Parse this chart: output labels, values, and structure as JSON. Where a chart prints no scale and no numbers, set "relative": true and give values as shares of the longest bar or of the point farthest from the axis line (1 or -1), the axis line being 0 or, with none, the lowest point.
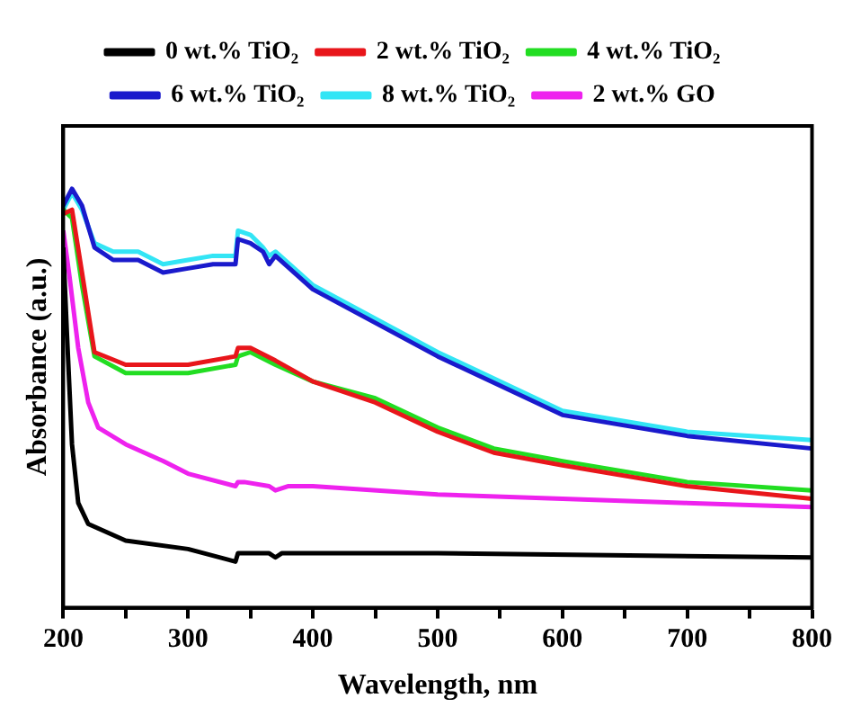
{
  "chart_data": {
    "type": "line",
    "xlabel": "Wavelength, nm",
    "ylabel": "Absorbance (a.u.)",
    "relative": true,
    "xlim": [
      200,
      800
    ],
    "xticks": [
      200,
      {
        "value": 250,
        "label": null
      },
      300,
      {
        "value": 350,
        "label": null
      },
      400,
      {
        "value": 450,
        "label": null
      },
      500,
      {
        "value": 550,
        "label": null
      },
      600,
      {
        "value": 650,
        "label": null
      },
      700,
      {
        "value": 750,
        "label": null
      },
      800
    ],
    "grid": false,
    "legend": "top",
    "marker": "none",
    "line_style": "solid",
    "series": [
      {
        "name": "0 wt.% TiO₂",
        "color": "#000000",
        "x": [
          200,
          203,
          207,
          212,
          220,
          235,
          250,
          300,
          338,
          340,
          365,
          370,
          375,
          400,
          500,
          800
        ],
        "values": [
          0.86,
          0.65,
          0.39,
          0.25,
          0.2,
          0.18,
          0.16,
          0.14,
          0.11,
          0.13,
          0.13,
          0.12,
          0.13,
          0.13,
          0.13,
          0.12
        ]
      },
      {
        "name": "2 wt.% TiO₂",
        "color": "#e8161b",
        "x": [
          200,
          207,
          215,
          225,
          250,
          300,
          338,
          340,
          350,
          370,
          400,
          450,
          500,
          545,
          600,
          700,
          800
        ],
        "values": [
          0.94,
          0.95,
          0.8,
          0.61,
          0.58,
          0.58,
          0.6,
          0.62,
          0.62,
          0.59,
          0.54,
          0.49,
          0.42,
          0.37,
          0.34,
          0.29,
          0.26
        ]
      },
      {
        "name": "4 wt.% TiO₂",
        "color": "#22dd22",
        "x": [
          200,
          207,
          215,
          225,
          250,
          300,
          338,
          340,
          350,
          370,
          400,
          450,
          500,
          545,
          600,
          700,
          800
        ],
        "values": [
          0.95,
          0.93,
          0.77,
          0.6,
          0.56,
          0.56,
          0.58,
          0.6,
          0.61,
          0.58,
          0.54,
          0.5,
          0.43,
          0.38,
          0.35,
          0.3,
          0.28
        ]
      },
      {
        "name": "6 wt.% TiO₂",
        "color": "#1a1acc",
        "x": [
          200,
          207,
          215,
          225,
          240,
          260,
          280,
          300,
          320,
          338,
          340,
          350,
          360,
          365,
          370,
          400,
          450,
          500,
          600,
          700,
          800
        ],
        "values": [
          0.96,
          1,
          0.96,
          0.86,
          0.83,
          0.83,
          0.8,
          0.81,
          0.82,
          0.82,
          0.88,
          0.87,
          0.85,
          0.82,
          0.84,
          0.76,
          0.68,
          0.6,
          0.46,
          0.41,
          0.38
        ]
      },
      {
        "name": "8 wt.% TiO₂",
        "color": "#33e5f5",
        "x": [
          200,
          207,
          215,
          225,
          240,
          260,
          280,
          300,
          320,
          338,
          340,
          350,
          360,
          365,
          370,
          400,
          450,
          500,
          600,
          700,
          800
        ],
        "values": [
          0.95,
          0.99,
          0.95,
          0.87,
          0.85,
          0.85,
          0.82,
          0.83,
          0.84,
          0.84,
          0.9,
          0.89,
          0.86,
          0.84,
          0.85,
          0.77,
          0.69,
          0.61,
          0.47,
          0.42,
          0.4
        ]
      },
      {
        "name": "2 wt.% GO",
        "color": "#ee22ee",
        "x": [
          200,
          205,
          212,
          220,
          228,
          250,
          280,
          300,
          338,
          340,
          345,
          365,
          370,
          380,
          400,
          500,
          600,
          700,
          800
        ],
        "values": [
          0.9,
          0.79,
          0.62,
          0.49,
          0.43,
          0.39,
          0.35,
          0.32,
          0.29,
          0.3,
          0.3,
          0.29,
          0.28,
          0.29,
          0.29,
          0.27,
          0.26,
          0.25,
          0.24
        ]
      }
    ]
  }
}
